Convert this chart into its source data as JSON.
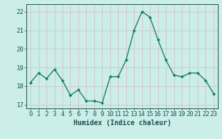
{
  "x": [
    0,
    1,
    2,
    3,
    4,
    5,
    6,
    7,
    8,
    9,
    10,
    11,
    12,
    13,
    14,
    15,
    16,
    17,
    18,
    19,
    20,
    21,
    22,
    23
  ],
  "y": [
    18.2,
    18.7,
    18.4,
    18.9,
    18.3,
    17.5,
    17.8,
    17.2,
    17.2,
    17.1,
    18.5,
    18.5,
    19.4,
    21.0,
    22.0,
    21.7,
    20.5,
    19.4,
    18.6,
    18.5,
    18.7,
    18.7,
    18.3,
    17.6
  ],
  "line_color": "#1a7a6e",
  "marker": "D",
  "marker_size": 2.0,
  "bg_color": "#cceee8",
  "grid_color": "#d4b8c0",
  "xlabel": "Humidex (Indice chaleur)",
  "xlabel_fontsize": 7,
  "xlabel_color": "#1a5050",
  "tick_label_color": "#1a5050",
  "tick_fontsize": 6.5,
  "ylim": [
    16.8,
    22.4
  ],
  "xlim": [
    -0.5,
    23.5
  ],
  "yticks": [
    17,
    18,
    19,
    20,
    21,
    22
  ],
  "xticks": [
    0,
    1,
    2,
    3,
    4,
    5,
    6,
    7,
    8,
    9,
    10,
    11,
    12,
    13,
    14,
    15,
    16,
    17,
    18,
    19,
    20,
    21,
    22,
    23
  ],
  "linewidth": 1.0
}
